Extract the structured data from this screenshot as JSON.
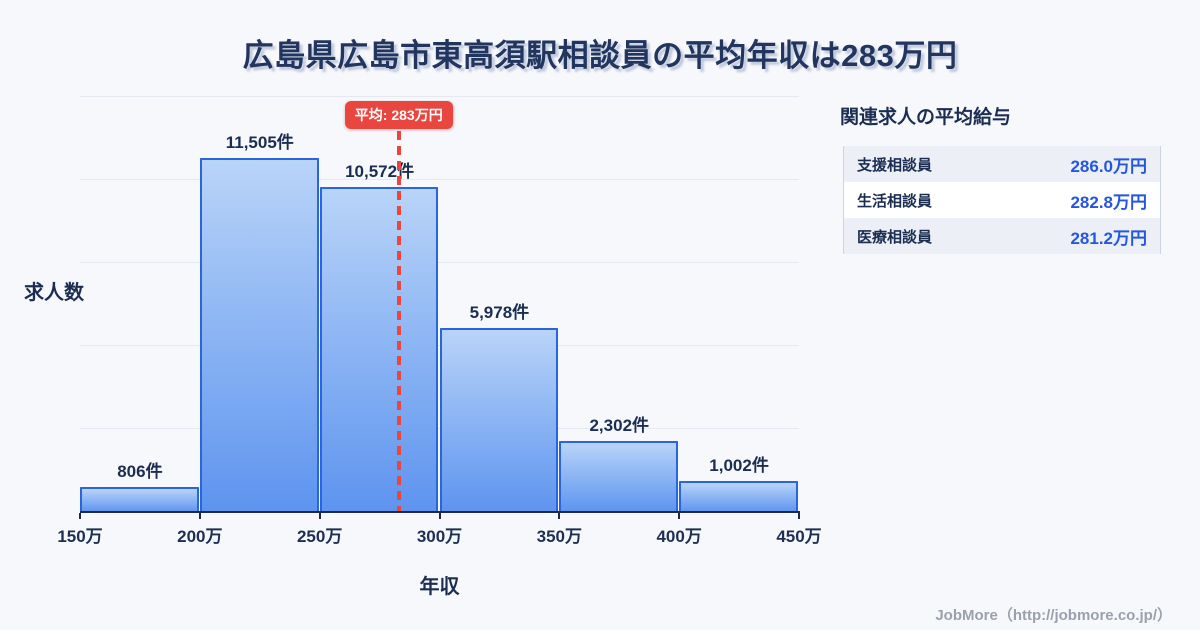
{
  "title": "広島県広島市東高須駅相談員の平均年収は283万円",
  "chart_data": {
    "type": "bar",
    "subtype": "histogram",
    "title": "広島県広島市東高須駅相談員の平均年収は283万円",
    "xlabel": "年収",
    "ylabel": "求人数",
    "bin_edge_labels": [
      "150万",
      "200万",
      "250万",
      "300万",
      "350万",
      "400万",
      "450万"
    ],
    "bin_edges_man_yen": [
      150,
      200,
      250,
      300,
      350,
      400,
      450
    ],
    "values": [
      806,
      11505,
      10572,
      5978,
      2302,
      1002
    ],
    "value_labels": [
      "806件",
      "11,505件",
      "10,572件",
      "5,978件",
      "2,302件",
      "1,002件"
    ],
    "mean_man_yen": 283,
    "mean_label": "平均: 283万円",
    "x_range": [
      150,
      450
    ],
    "y_scale_max": 11505,
    "grid": true,
    "gridline_count": 5,
    "legend": "none",
    "colors": {
      "bar_top": "#b9d4f8",
      "bar_bottom": "#5e94ef",
      "bar_border": "#2b65dc",
      "mean_line": "#e8463e",
      "text": "#1b2e52",
      "background": "#f7f8fb"
    }
  },
  "side_panel": {
    "heading": "関連求人の平均給与",
    "rows": [
      {
        "label": "支援相談員",
        "value": "286.0万円"
      },
      {
        "label": "生活相談員",
        "value": "282.8万円"
      },
      {
        "label": "医療相談員",
        "value": "281.2万円"
      }
    ],
    "value_color": "#2456e0"
  },
  "footer": {
    "credit": "JobMore（http://jobmore.co.jp/）"
  }
}
